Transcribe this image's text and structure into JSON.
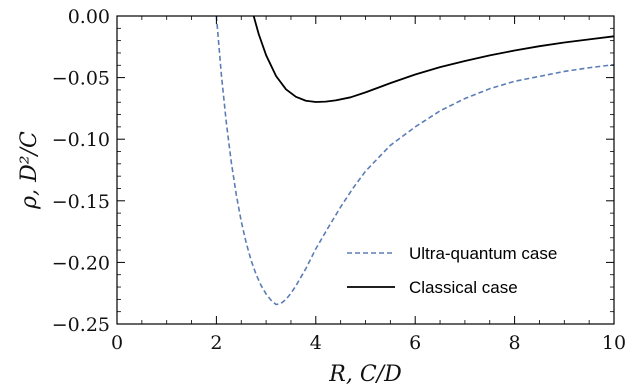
{
  "chart_data": {
    "type": "line",
    "xlabel": "R, C/D",
    "ylabel": "ρ, D²/C",
    "xlim": [
      0,
      10
    ],
    "ylim": [
      -0.25,
      0.0
    ],
    "x_ticks": [
      {
        "value": 0,
        "label": "0"
      },
      {
        "value": 2,
        "label": "2"
      },
      {
        "value": 4,
        "label": "4"
      },
      {
        "value": 6,
        "label": "6"
      },
      {
        "value": 8,
        "label": "8"
      },
      {
        "value": 10,
        "label": "10"
      }
    ],
    "y_ticks": [
      {
        "value": 0.0,
        "label": "0.00"
      },
      {
        "value": -0.05,
        "label": "−0.05"
      },
      {
        "value": -0.1,
        "label": "−0.10"
      },
      {
        "value": -0.15,
        "label": "−0.15"
      },
      {
        "value": -0.2,
        "label": "−0.20"
      },
      {
        "value": -0.25,
        "label": "−0.25"
      }
    ],
    "grid": false,
    "legend_position": "bottom-right",
    "series": [
      {
        "name": "Ultra-quantum case",
        "color": "#5b7db5",
        "style": "dashed",
        "x": [
          2.0,
          2.1,
          2.2,
          2.3,
          2.4,
          2.5,
          2.6,
          2.7,
          2.8,
          2.9,
          3.0,
          3.1,
          3.2,
          3.3,
          3.4,
          3.5,
          3.6,
          3.8,
          4.0,
          4.25,
          4.5,
          4.75,
          5.0,
          5.5,
          6.0,
          6.5,
          7.0,
          7.5,
          8.0,
          8.5,
          9.0,
          9.5,
          10.0
        ],
        "y": [
          0.0,
          -0.0477,
          -0.0867,
          -0.1188,
          -0.1451,
          -0.1667,
          -0.1843,
          -0.1985,
          -0.2099,
          -0.2188,
          -0.2257,
          -0.2307,
          -0.2342,
          -0.2333,
          -0.23,
          -0.225,
          -0.219,
          -0.205,
          -0.189,
          -0.1717,
          -0.155,
          -0.1397,
          -0.126,
          -0.105,
          -0.09,
          -0.077,
          -0.067,
          -0.059,
          -0.053,
          -0.049,
          -0.045,
          -0.042,
          -0.0395
        ]
      },
      {
        "name": "Classical case",
        "color": "#000000",
        "style": "solid",
        "x": [
          2.75,
          2.85,
          3.0,
          3.2,
          3.4,
          3.6,
          3.8,
          4.0,
          4.2,
          4.4,
          4.7,
          5.0,
          5.5,
          6.0,
          6.5,
          7.0,
          7.5,
          8.0,
          8.5,
          9.0,
          9.5,
          10.0
        ],
        "y": [
          0.0,
          -0.0145,
          -0.0318,
          -0.0487,
          -0.0595,
          -0.0656,
          -0.0688,
          -0.0698,
          -0.0695,
          -0.0685,
          -0.066,
          -0.062,
          -0.0545,
          -0.0475,
          -0.0415,
          -0.0365,
          -0.032,
          -0.028,
          -0.0245,
          -0.0215,
          -0.019,
          -0.0165
        ]
      }
    ]
  }
}
